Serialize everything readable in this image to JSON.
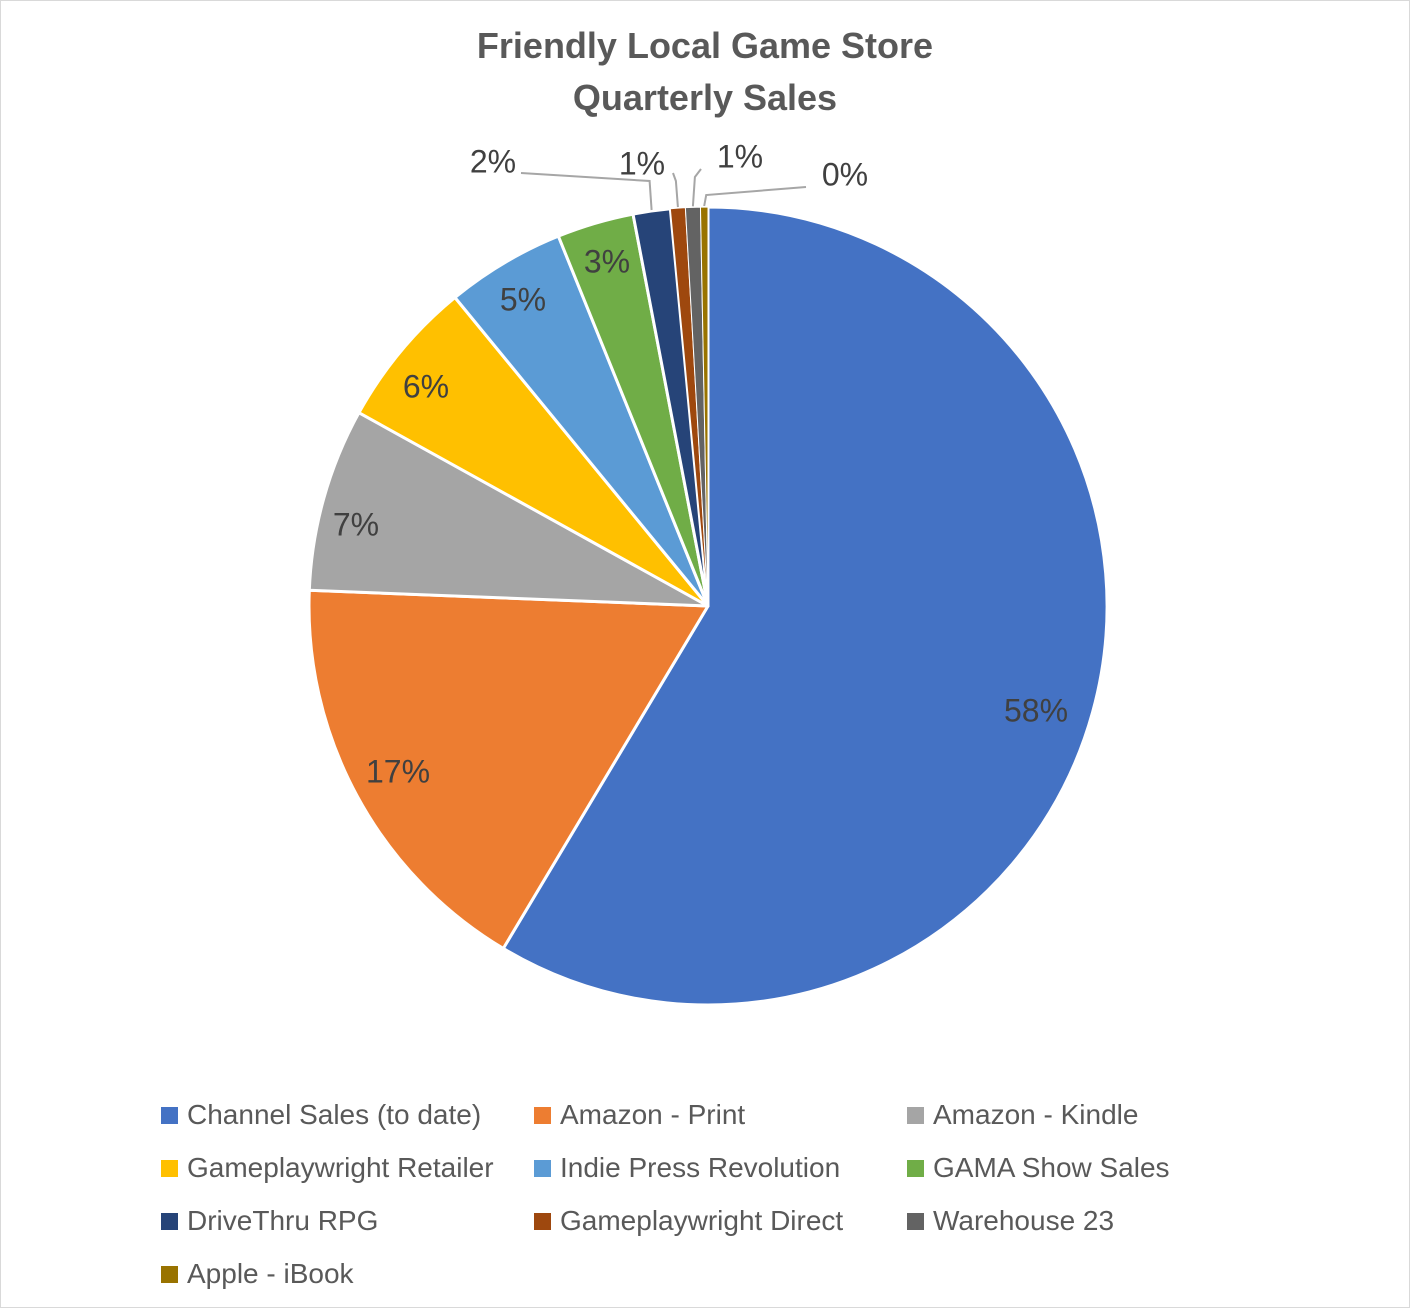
{
  "chart_data": {
    "type": "pie",
    "title": "Friendly Local Game Store Quarterly Sales",
    "title_lines": [
      "Friendly Local Game Store",
      "Quarterly Sales"
    ],
    "legend_position": "bottom",
    "slices": [
      {
        "label": "Channel Sales (to date)",
        "percent": 58.4,
        "display": "58%",
        "color": "#4472C4"
      },
      {
        "label": "Amazon - Print",
        "percent": 17.0,
        "display": "17%",
        "color": "#ED7D31"
      },
      {
        "label": "Amazon - Kindle",
        "percent": 7.4,
        "display": "7%",
        "color": "#A5A5A5"
      },
      {
        "label": "Gameplaywright Retailer",
        "percent": 6.0,
        "display": "6%",
        "color": "#FFC000"
      },
      {
        "label": "Indie Press Revolution",
        "percent": 4.8,
        "display": "5%",
        "color": "#5B9BD5"
      },
      {
        "label": "GAMA Show Sales",
        "percent": 3.1,
        "display": "3%",
        "color": "#70AD47"
      },
      {
        "label": "DriveThru RPG",
        "percent": 1.5,
        "display": "2%",
        "color": "#264478"
      },
      {
        "label": "Gameplaywright Direct",
        "percent": 0.6,
        "display": "1%",
        "color": "#9E480E"
      },
      {
        "label": "Warehouse 23",
        "percent": 0.6,
        "display": "1%",
        "color": "#636363"
      },
      {
        "label": "Apple - iBook",
        "percent": 0.3,
        "display": "0%",
        "color": "#997300"
      }
    ]
  }
}
